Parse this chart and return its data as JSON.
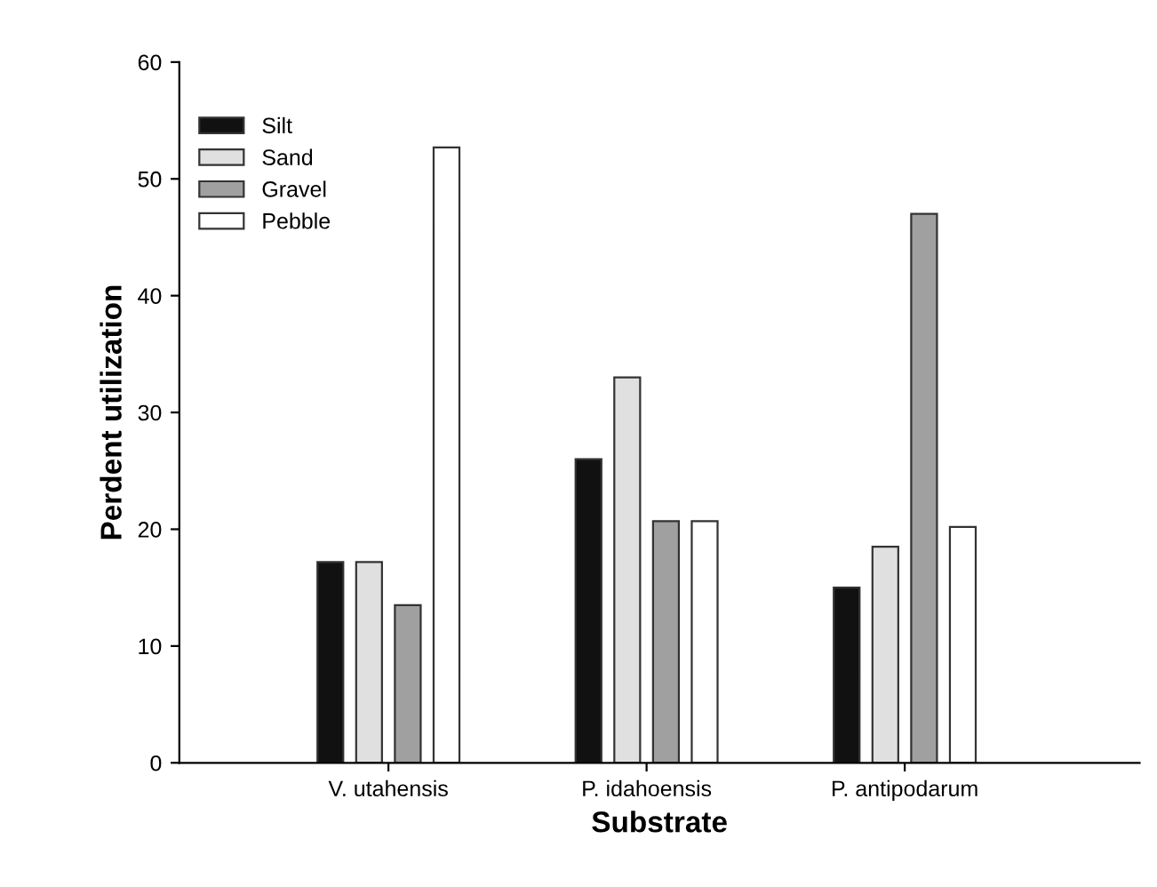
{
  "chart_data": {
    "type": "bar",
    "xlabel": "Substrate",
    "ylabel": "Perdent utilization",
    "categories": [
      "V. utahensis",
      "P. idahoensis",
      "P. antipodarum"
    ],
    "series": [
      {
        "name": "Silt",
        "color": "#111111",
        "values": [
          17.2,
          26,
          15
        ]
      },
      {
        "name": "Sand",
        "color": "#e0e0e0",
        "values": [
          17.2,
          33,
          18.5
        ]
      },
      {
        "name": "Gravel",
        "color": "#a0a0a0",
        "values": [
          13.5,
          20.7,
          47
        ]
      },
      {
        "name": "Pebble",
        "color": "#ffffff",
        "values": [
          52.7,
          20.7,
          20.2
        ]
      }
    ],
    "ylim": [
      0,
      60
    ],
    "yticks": [
      0,
      10,
      20,
      30,
      40,
      50,
      60
    ],
    "grid": false,
    "legend": "top left"
  }
}
